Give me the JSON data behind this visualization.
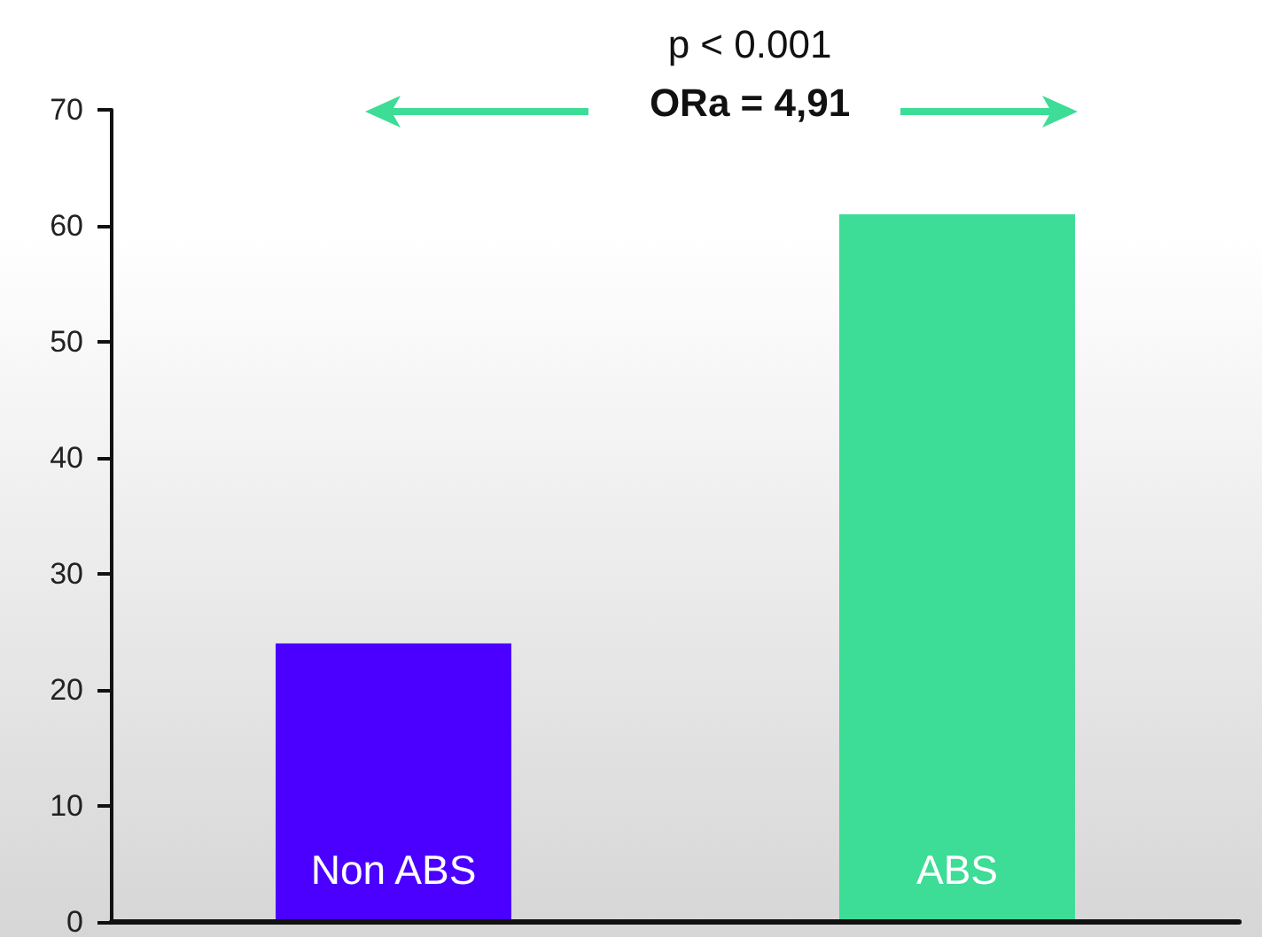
{
  "chart_data": {
    "type": "bar",
    "categories": [
      "Non ABS",
      "ABS"
    ],
    "values": [
      24,
      61
    ],
    "colors": [
      "#4b00ff",
      "#3ddc97"
    ],
    "ylim": [
      0,
      70
    ],
    "yticks": [
      0,
      10,
      20,
      30,
      40,
      50,
      60,
      70
    ],
    "grid": false,
    "annotations": [
      "p < 0.001",
      "ORa = 4,91"
    ]
  }
}
